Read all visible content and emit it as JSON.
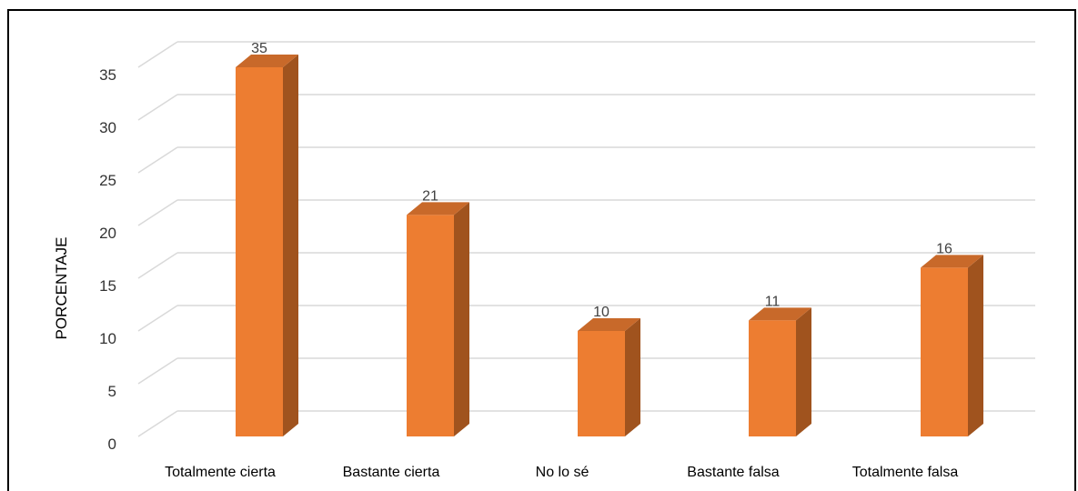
{
  "chart_data": {
    "type": "bar",
    "style": "3d-column",
    "title": "",
    "xlabel": "",
    "ylabel": "PORCENTAJE",
    "categories": [
      "Totalmente cierta",
      "Bastante cierta",
      "No lo sé",
      "Bastante falsa",
      "Totalmente falsa"
    ],
    "values": [
      35,
      21,
      10,
      11,
      16
    ],
    "data_labels": [
      "35",
      "21",
      "10",
      "11",
      "16"
    ],
    "ylim": [
      0,
      35
    ],
    "yticks": [
      0,
      5,
      10,
      15,
      20,
      25,
      30,
      35
    ],
    "grid": true,
    "legend": "none",
    "colors": {
      "bar_front": "#ED7D31",
      "bar_side": "#A0531E",
      "bar_top": "#C8692A",
      "grid": "#D9D9D9"
    }
  }
}
